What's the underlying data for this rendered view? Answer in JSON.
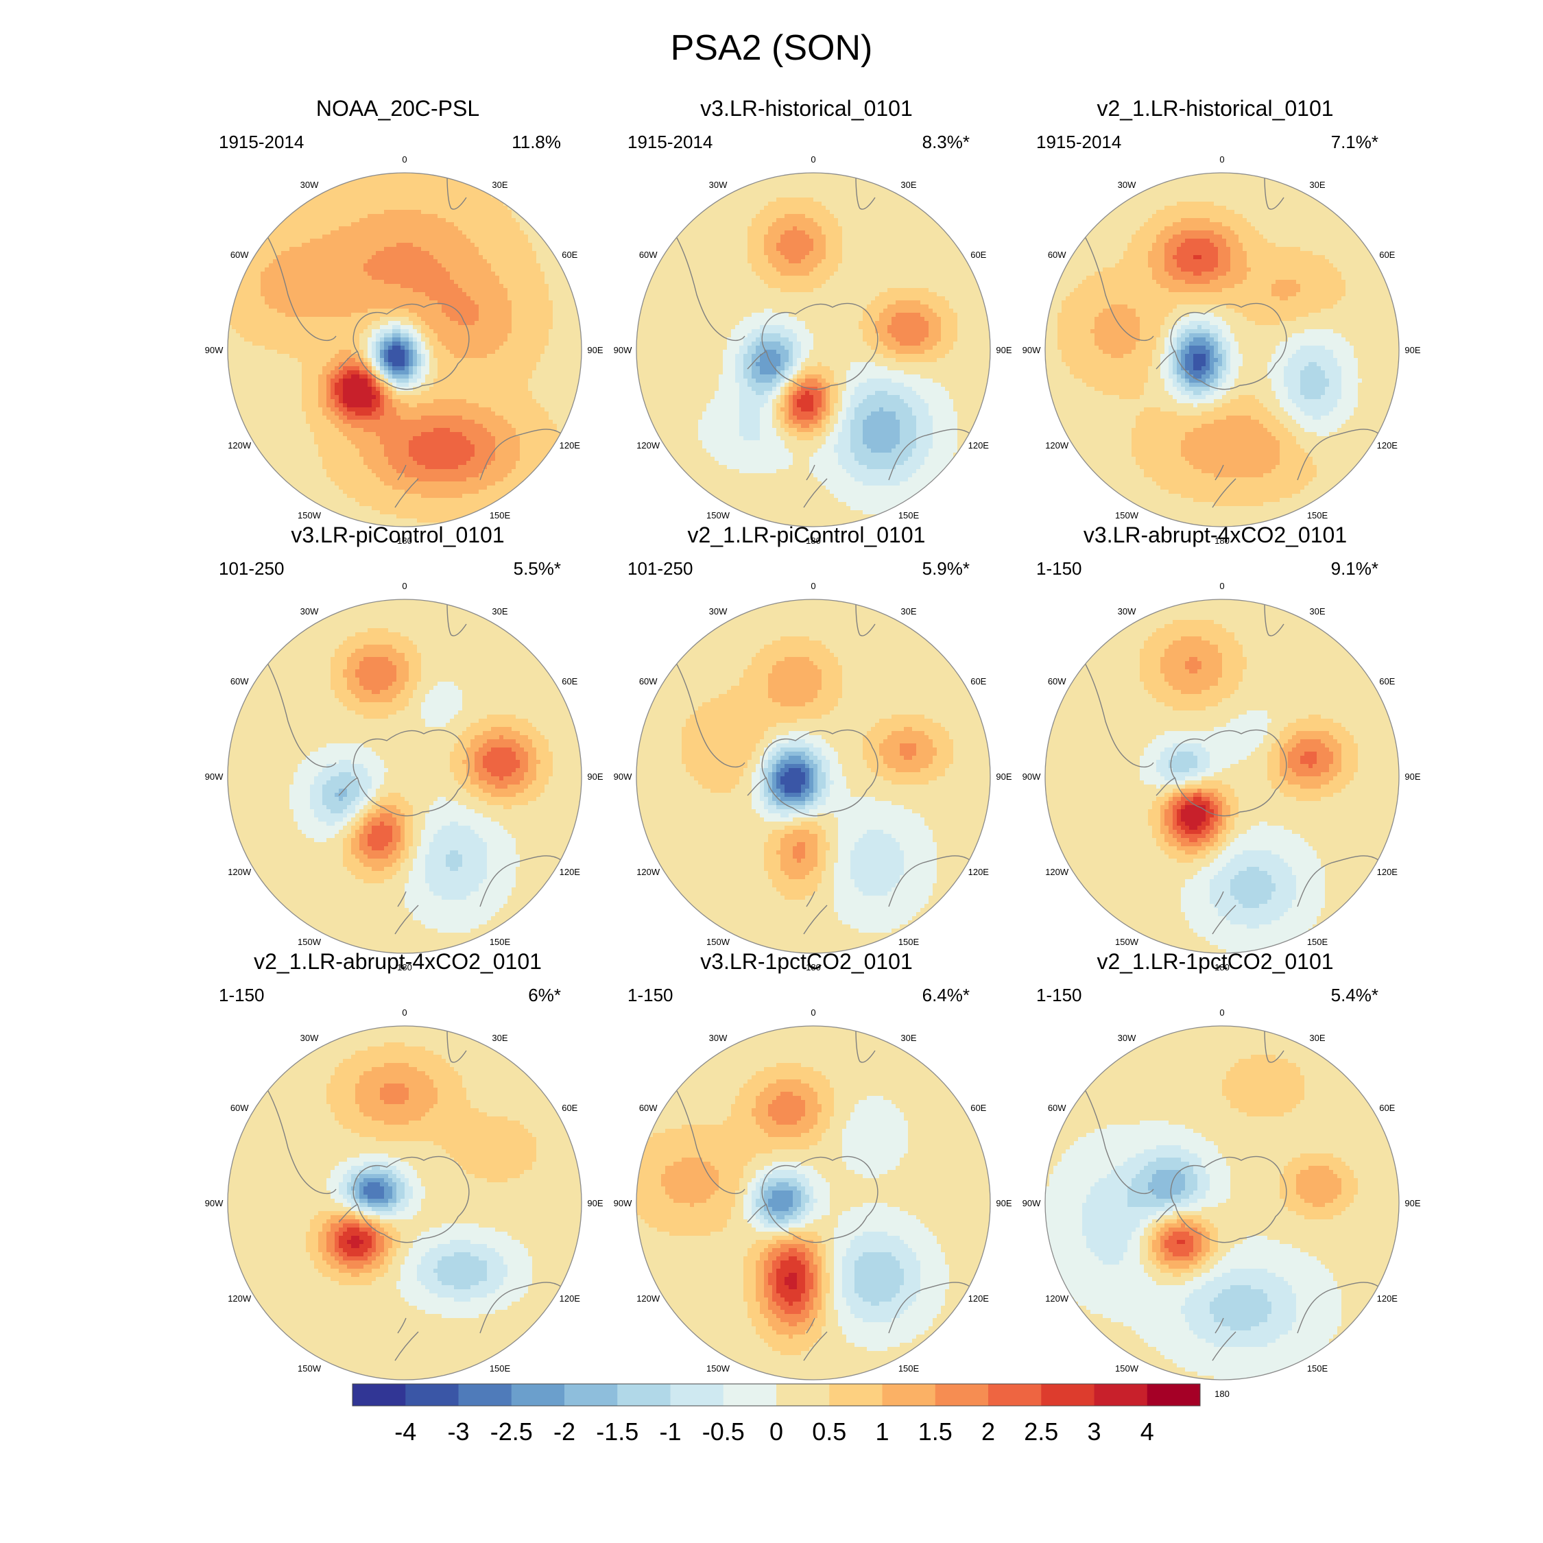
{
  "title": "PSA2 (SON)",
  "colors": {
    "scale": [
      "#313695",
      "#3a56a6",
      "#4f7bba",
      "#6b9fcc",
      "#8ebedc",
      "#b1d8e8",
      "#cfe9f1",
      "#e7f3ef",
      "#f5e3a6",
      "#fdd080",
      "#fbb165",
      "#f68d52",
      "#ee6541",
      "#dd3c2d",
      "#c8202b",
      "#a50026"
    ],
    "coast": "#7f7f7f",
    "rim": "#8a8a8a"
  },
  "lon_labels": [
    "0",
    "30E",
    "60E",
    "90E",
    "120E",
    "150E",
    "180",
    "150W",
    "120W",
    "90W",
    "60W",
    "30W"
  ],
  "panels": [
    {
      "title": "NOAA_20C-PSL",
      "period": "1915-2014",
      "pct": "11.8%",
      "blobs": [
        [
          228,
          3.6,
          0.34,
          0.13,
          0.12
        ],
        [
          0,
          1.2,
          0.5,
          0.34,
          0.26
        ],
        [
          160,
          2.0,
          0.6,
          0.3,
          0.18
        ],
        [
          300,
          0.8,
          0.72,
          0.25,
          0.2
        ],
        [
          70,
          0.9,
          0.42,
          0.22,
          0.2
        ],
        [
          225,
          -4.4,
          0.07,
          0.1,
          0.12
        ]
      ],
      "base": 0.35
    },
    {
      "title": "v3.LR-historical_0101",
      "period": "1915-2014",
      "pct": "8.3%*",
      "blobs": [
        [
          350,
          1.6,
          0.6,
          0.15,
          0.15
        ],
        [
          78,
          1.8,
          0.55,
          0.15,
          0.13
        ],
        [
          190,
          3.2,
          0.3,
          0.12,
          0.13
        ],
        [
          140,
          -2.0,
          0.6,
          0.2,
          0.22
        ],
        [
          250,
          -2.8,
          0.25,
          0.12,
          0.14
        ],
        [
          215,
          -0.8,
          0.55,
          0.2,
          0.15
        ]
      ],
      "base": 0.2
    },
    {
      "title": "v2_1.LR-historical_0101",
      "period": "1915-2014",
      "pct": "7.1%*",
      "blobs": [
        [
          345,
          2.2,
          0.55,
          0.17,
          0.14
        ],
        [
          245,
          -3.6,
          0.15,
          0.11,
          0.14
        ],
        [
          170,
          1.2,
          0.55,
          0.32,
          0.18
        ],
        [
          112,
          -1.6,
          0.55,
          0.15,
          0.22
        ],
        [
          50,
          0.8,
          0.5,
          0.2,
          0.15
        ],
        [
          280,
          0.9,
          0.6,
          0.2,
          0.2
        ]
      ],
      "base": 0.3
    },
    {
      "title": "v3.LR-piControl_0101",
      "period": "101-250",
      "pct": "5.5%*",
      "blobs": [
        [
          345,
          1.8,
          0.6,
          0.15,
          0.14
        ],
        [
          82,
          2.3,
          0.55,
          0.15,
          0.14
        ],
        [
          205,
          2.5,
          0.35,
          0.13,
          0.15
        ],
        [
          250,
          -2.0,
          0.35,
          0.14,
          0.14
        ],
        [
          150,
          -1.2,
          0.55,
          0.18,
          0.2
        ],
        [
          25,
          -0.5,
          0.45,
          0.1,
          0.1
        ]
      ],
      "base": 0.15
    },
    {
      "title": "v2_1.LR-piControl_0101",
      "period": "101-250",
      "pct": "5.9%*",
      "blobs": [
        [
          350,
          1.2,
          0.55,
          0.16,
          0.15
        ],
        [
          75,
          1.4,
          0.55,
          0.15,
          0.12
        ],
        [
          255,
          -4.0,
          0.12,
          0.12,
          0.14
        ],
        [
          190,
          1.6,
          0.4,
          0.12,
          0.18
        ],
        [
          145,
          -1.0,
          0.6,
          0.2,
          0.22
        ],
        [
          290,
          0.8,
          0.5,
          0.2,
          0.2
        ]
      ],
      "base": 0.2
    },
    {
      "title": "v3.LR-abrupt-4xCO2_0101",
      "period": "1-150",
      "pct": "9.1%*",
      "blobs": [
        [
          345,
          1.4,
          0.65,
          0.18,
          0.16
        ],
        [
          78,
          2.0,
          0.5,
          0.15,
          0.13
        ],
        [
          220,
          3.8,
          0.25,
          0.12,
          0.15
        ],
        [
          275,
          -2.4,
          0.2,
          0.12,
          0.12
        ],
        [
          165,
          -1.4,
          0.65,
          0.2,
          0.18
        ],
        [
          40,
          -0.5,
          0.3,
          0.15,
          0.12
        ]
      ],
      "base": 0.15
    },
    {
      "title": "v2_1.LR-abrupt-4xCO2_0101",
      "period": "1-150",
      "pct": "6%*",
      "blobs": [
        [
          355,
          1.4,
          0.62,
          0.22,
          0.16
        ],
        [
          232,
          3.0,
          0.35,
          0.13,
          0.12
        ],
        [
          290,
          -3.2,
          0.18,
          0.12,
          0.1
        ],
        [
          140,
          -1.6,
          0.5,
          0.2,
          0.13
        ],
        [
          60,
          0.6,
          0.6,
          0.2,
          0.15
        ]
      ],
      "base": 0.2
    },
    {
      "title": "v3.LR-1pctCO2_0101",
      "period": "1-150",
      "pct": "6.4%*",
      "blobs": [
        [
          345,
          1.6,
          0.55,
          0.16,
          0.14
        ],
        [
          195,
          3.0,
          0.45,
          0.13,
          0.2
        ],
        [
          270,
          -3.0,
          0.18,
          0.12,
          0.12
        ],
        [
          140,
          -1.6,
          0.55,
          0.2,
          0.2
        ],
        [
          280,
          1.0,
          0.7,
          0.25,
          0.2
        ],
        [
          40,
          -0.6,
          0.5,
          0.15,
          0.15
        ]
      ],
      "base": 0.2
    },
    {
      "title": "v2_1.LR-1pctCO2_0101",
      "period": "1-150",
      "pct": "5.4%*",
      "blobs": [
        [
          228,
          2.8,
          0.33,
          0.13,
          0.12
        ],
        [
          80,
          1.4,
          0.55,
          0.14,
          0.12
        ],
        [
          290,
          -1.8,
          0.3,
          0.14,
          0.14
        ],
        [
          170,
          -1.4,
          0.6,
          0.25,
          0.18
        ],
        [
          260,
          -1.0,
          0.6,
          0.2,
          0.25
        ],
        [
          20,
          0.8,
          0.7,
          0.2,
          0.15
        ]
      ],
      "base": 0.1
    }
  ],
  "colorbar": {
    "ticks": [
      "-4",
      "-3",
      "-2.5",
      "-2",
      "-1.5",
      "-1",
      "-0.5",
      "0",
      "0.5",
      "1",
      "1.5",
      "2",
      "2.5",
      "3",
      "4"
    ]
  }
}
